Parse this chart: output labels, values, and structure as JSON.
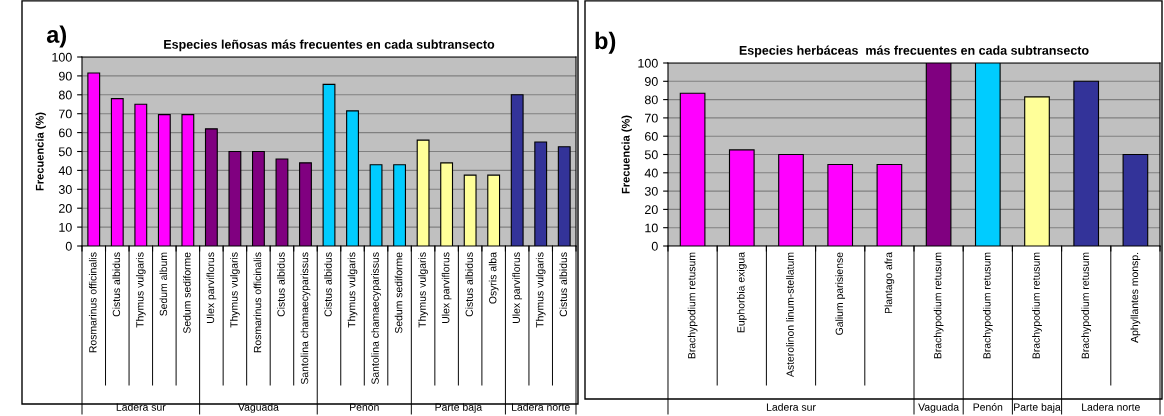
{
  "chart_data": [
    {
      "type": "bar",
      "title": "Especies leñosas más frecuentes en cada subtransecto",
      "ylabel": "Frecuencia (%)",
      "categories": [
        "Rosmarinus officinalis",
        "Cistus albidus",
        "Thymus vulgaris",
        "Sedum album",
        "Sedum sediforme",
        "Ulex parviflorus",
        "Thymus vulgaris",
        "Rosmarinus officinalis",
        "Cistus albidus",
        "Santolina chamaecyparissus",
        "Cistus albidus",
        "Thymus vulgaris",
        "Santolina chamaecyparissus",
        "Sedum sediforme",
        "Thymus vulgaris",
        "Ulex parviflorus",
        "Cistus albidus",
        "Osyris alba",
        "Ulex parviflorus",
        "Thymus vulgaris",
        "Cistus albidus"
      ],
      "values": [
        91.5,
        78,
        75,
        69.5,
        69.5,
        62,
        50,
        50,
        46,
        44,
        85.5,
        71.5,
        43,
        43,
        56,
        44,
        37.5,
        37.5,
        80,
        55,
        52.5
      ],
      "colors": [
        "#ff00ff",
        "#ff00ff",
        "#ff00ff",
        "#ff00ff",
        "#ff00ff",
        "#800080",
        "#800080",
        "#800080",
        "#800080",
        "#800080",
        "#00ccff",
        "#00ccff",
        "#00ccff",
        "#00ccff",
        "#ffff99",
        "#ffff99",
        "#ffff99",
        "#ffff99",
        "#333399",
        "#333399",
        "#333399"
      ],
      "ylim": [
        0,
        100
      ],
      "yticks": [
        0,
        10,
        20,
        30,
        40,
        50,
        60,
        70,
        80,
        90,
        100
      ],
      "grid": "y",
      "annotations": [
        "a)",
        "Ladera sur",
        "Vaguada",
        "Penón",
        "Parte baja",
        "Ladera norte"
      ]
    },
    {
      "type": "bar",
      "title": "Especies herbáceas  más frecuentes en cada subtransecto",
      "ylabel": "Frecuencia (%)",
      "categories": [
        "Brachypodium retusum",
        "Euphorbia exigua",
        "Asterolinon linum-stellatum",
        "Galium parisiense",
        "Plantago afra",
        "Brachypodium retusum",
        "Brachypodium retusum",
        "Brachypodium retusum",
        "Brachypodium retusum",
        "Aphyllantes monsp."
      ],
      "values": [
        83.5,
        52.5,
        50,
        44.5,
        44.5,
        100,
        100,
        81.5,
        90,
        50
      ],
      "colors": [
        "#ff00ff",
        "#ff00ff",
        "#ff00ff",
        "#ff00ff",
        "#ff00ff",
        "#800080",
        "#00ccff",
        "#ffff99",
        "#333399",
        "#333399"
      ],
      "ylim": [
        0,
        100
      ],
      "yticks": [
        0,
        10,
        20,
        30,
        40,
        50,
        60,
        70,
        80,
        90,
        100
      ],
      "grid": "y",
      "annotations": [
        "b)",
        "Ladera sur",
        "Vaguada",
        "Penón",
        "Parte baja",
        "Ladera norte"
      ]
    }
  ]
}
